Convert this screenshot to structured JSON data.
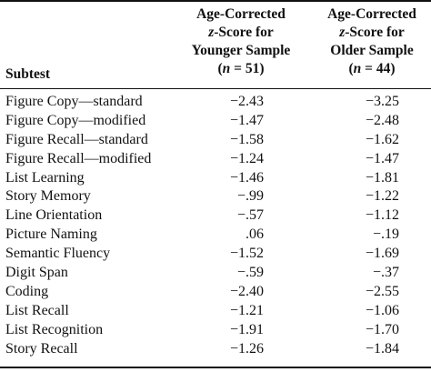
{
  "table": {
    "header": {
      "subtest_label": "Subtest",
      "col1": {
        "line1": "Age-Corrected",
        "line2_italic": "z",
        "line2_rest": "-Score for",
        "line3": "Younger Sample",
        "line4_open": "(",
        "line4_italic": "n",
        "line4_rest": " = 51)"
      },
      "col2": {
        "line1": "Age-Corrected",
        "line2_italic": "z",
        "line2_rest": "-Score for",
        "line3": "Older Sample",
        "line4_open": "(",
        "line4_italic": "n",
        "line4_rest": " = 44)"
      }
    },
    "rows": [
      {
        "name": "Figure Copy—standard",
        "younger": "−2.43",
        "older": "−3.25"
      },
      {
        "name": "Figure Copy—modified",
        "younger": "−1.47",
        "older": "−2.48"
      },
      {
        "name": "Figure Recall—standard",
        "younger": "−1.58",
        "older": "−1.62"
      },
      {
        "name": "Figure Recall—modified",
        "younger": "−1.24",
        "older": "−1.47"
      },
      {
        "name": "List Learning",
        "younger": "−1.46",
        "older": "−1.81"
      },
      {
        "name": "Story Memory",
        "younger": "−.99",
        "older": "−1.22"
      },
      {
        "name": "Line Orientation",
        "younger": "−.57",
        "older": "−1.12"
      },
      {
        "name": "Picture Naming",
        "younger": ".06",
        "older": "−.19"
      },
      {
        "name": "Semantic Fluency",
        "younger": "−1.52",
        "older": "−1.69"
      },
      {
        "name": "Digit Span",
        "younger": "−.59",
        "older": "−.37"
      },
      {
        "name": "Coding",
        "younger": "−2.40",
        "older": "−2.55"
      },
      {
        "name": "List Recall",
        "younger": "−1.21",
        "older": "−1.06"
      },
      {
        "name": "List Recognition",
        "younger": "−1.91",
        "older": "−1.70"
      },
      {
        "name": "Story Recall",
        "younger": "−1.26",
        "older": "−1.84"
      }
    ]
  }
}
